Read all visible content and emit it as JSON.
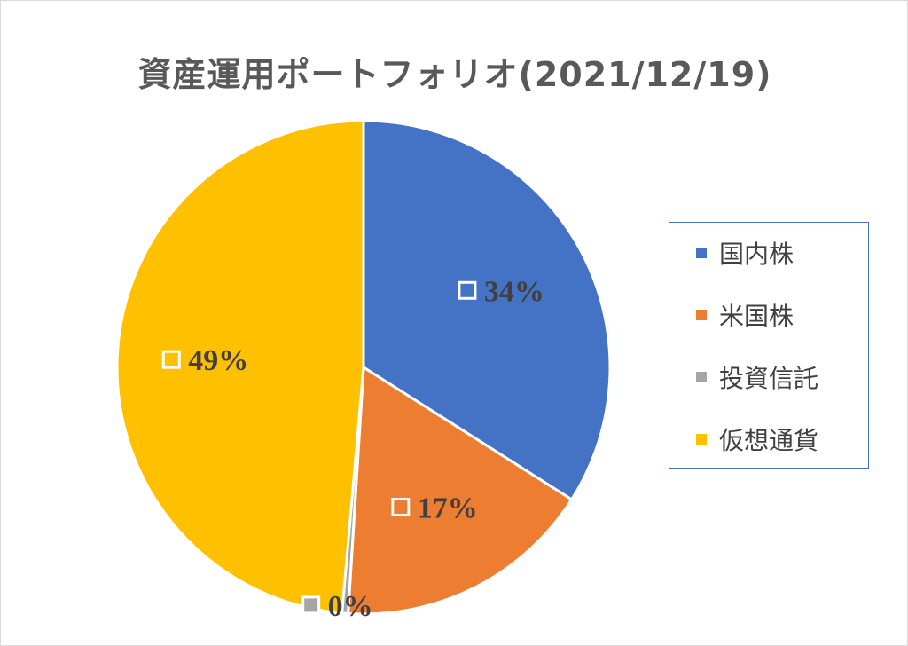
{
  "chart_data": {
    "type": "pie",
    "title": "資産運用ポートフォリオ(2021/12/19)",
    "categories": [
      "国内株",
      "米国株",
      "投資信託",
      "仮想通貨"
    ],
    "values": [
      34,
      17,
      0.4,
      48.6
    ],
    "labels": [
      "34%",
      "17%",
      "0%",
      "49%"
    ],
    "colors": [
      "#4472c4",
      "#ed7d31",
      "#a5a5a5",
      "#ffc000"
    ],
    "legend_position": "right"
  }
}
